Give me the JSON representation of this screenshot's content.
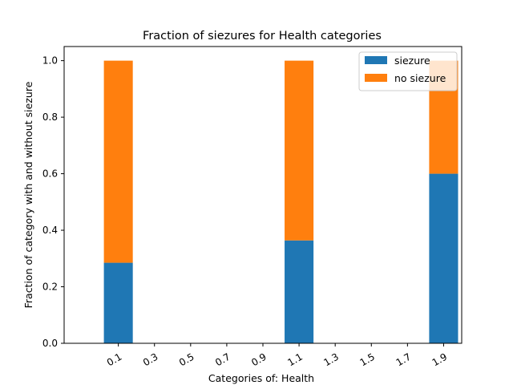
{
  "chart_data": {
    "type": "bar",
    "stacked": true,
    "title": "Fraction of siezures for Health  categories",
    "xlabel": "Categories of: Health",
    "ylabel": "Fraction of category with and without siezure",
    "x_ticks": [
      "0.1",
      "0.3",
      "0.5",
      "0.7",
      "0.9",
      "1.1",
      "1.3",
      "1.5",
      "1.7",
      "1.9"
    ],
    "x_tick_rotation_deg": 30,
    "xlim": [
      -0.2,
      2.0
    ],
    "ylim": [
      0.0,
      1.05
    ],
    "y_ticks": [
      0.0,
      0.2,
      0.4,
      0.6,
      0.8,
      1.0
    ],
    "y_tick_labels": [
      "0.0",
      "0.2",
      "0.4",
      "0.6",
      "0.8",
      "1.0"
    ],
    "bar_width": 0.16,
    "x": [
      0.1,
      1.1,
      1.9
    ],
    "series": [
      {
        "name": "siezure",
        "color": "#1f77b4",
        "values": [
          0.285,
          0.364,
          0.6
        ]
      },
      {
        "name": "no siezure",
        "color": "#ff7f0e",
        "values": [
          0.715,
          0.636,
          0.4
        ]
      }
    ],
    "legend": "top-right",
    "grid": false
  }
}
